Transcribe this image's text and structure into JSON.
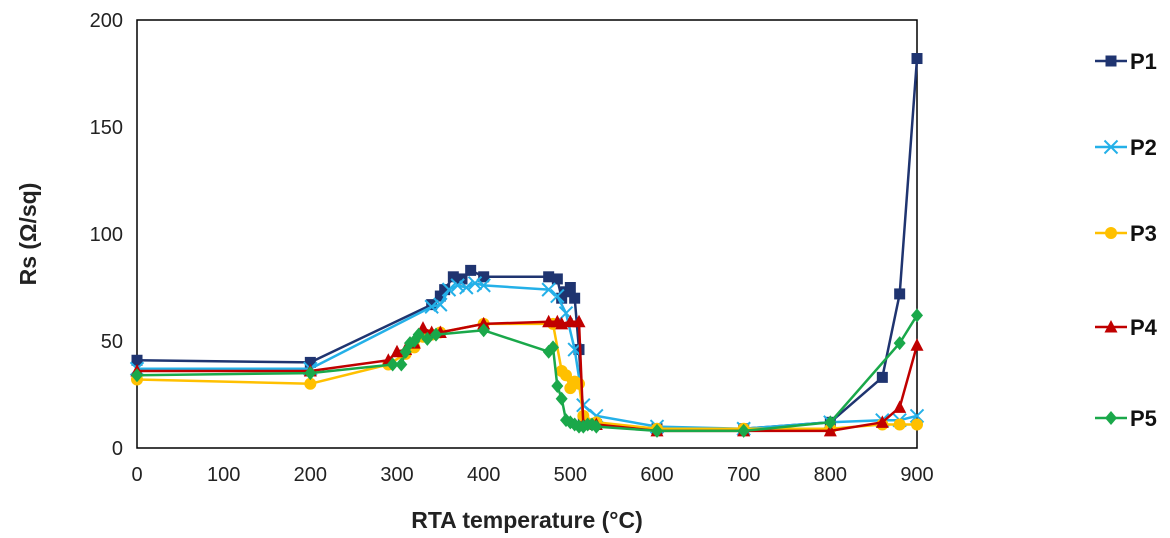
{
  "chart_data": {
    "type": "line",
    "title": "",
    "xlabel": "RTA temperature (°C)",
    "ylabel": "Rs (Ω/sq)",
    "xlim": [
      0,
      900
    ],
    "ylim": [
      0,
      200
    ],
    "xticks": [
      "0",
      "100",
      "200",
      "300",
      "400",
      "500",
      "600",
      "700",
      "800",
      "900"
    ],
    "yticks": [
      "0",
      "50",
      "100",
      "150",
      "200"
    ],
    "grid": false,
    "legend_position": "right",
    "series": [
      {
        "name": "P1",
        "color": "#1f3470",
        "marker": "square",
        "points": [
          [
            0,
            41
          ],
          [
            200,
            40
          ],
          [
            340,
            67
          ],
          [
            350,
            71
          ],
          [
            355,
            74
          ],
          [
            365,
            80
          ],
          [
            375,
            79
          ],
          [
            385,
            83
          ],
          [
            400,
            80
          ],
          [
            475,
            80
          ],
          [
            485,
            79
          ],
          [
            490,
            70
          ],
          [
            495,
            73
          ],
          [
            500,
            75
          ],
          [
            505,
            70
          ],
          [
            510,
            46
          ],
          [
            515,
            12
          ],
          [
            530,
            11
          ],
          [
            600,
            9
          ],
          [
            700,
            9
          ],
          [
            800,
            12
          ],
          [
            860,
            33
          ],
          [
            880,
            72
          ],
          [
            900,
            182
          ]
        ]
      },
      {
        "name": "P2",
        "color": "#24b0e8",
        "marker": "x",
        "points": [
          [
            0,
            37
          ],
          [
            200,
            37
          ],
          [
            340,
            66
          ],
          [
            350,
            67
          ],
          [
            360,
            74
          ],
          [
            370,
            76
          ],
          [
            380,
            75
          ],
          [
            390,
            77
          ],
          [
            400,
            76
          ],
          [
            475,
            74
          ],
          [
            485,
            71
          ],
          [
            495,
            63
          ],
          [
            505,
            46
          ],
          [
            515,
            20
          ],
          [
            530,
            15
          ],
          [
            600,
            10
          ],
          [
            700,
            9
          ],
          [
            800,
            12
          ],
          [
            860,
            13
          ],
          [
            880,
            13
          ],
          [
            900,
            15
          ]
        ]
      },
      {
        "name": "P3",
        "color": "#ffc000",
        "marker": "circle",
        "points": [
          [
            0,
            32
          ],
          [
            200,
            30
          ],
          [
            290,
            39
          ],
          [
            310,
            44
          ],
          [
            320,
            47
          ],
          [
            330,
            52
          ],
          [
            340,
            53
          ],
          [
            350,
            54
          ],
          [
            400,
            58
          ],
          [
            480,
            58
          ],
          [
            490,
            36
          ],
          [
            495,
            34
          ],
          [
            500,
            28
          ],
          [
            505,
            31
          ],
          [
            510,
            30
          ],
          [
            515,
            15
          ],
          [
            530,
            12
          ],
          [
            600,
            9
          ],
          [
            700,
            9
          ],
          [
            800,
            9
          ],
          [
            860,
            11
          ],
          [
            880,
            11
          ],
          [
            900,
            11
          ]
        ]
      },
      {
        "name": "P4",
        "color": "#c00000",
        "marker": "triangle",
        "points": [
          [
            0,
            36
          ],
          [
            200,
            36
          ],
          [
            290,
            41
          ],
          [
            300,
            45
          ],
          [
            310,
            46
          ],
          [
            320,
            49
          ],
          [
            330,
            56
          ],
          [
            340,
            54
          ],
          [
            350,
            54
          ],
          [
            400,
            58
          ],
          [
            475,
            59
          ],
          [
            485,
            59
          ],
          [
            490,
            58
          ],
          [
            500,
            59
          ],
          [
            510,
            59
          ],
          [
            515,
            11
          ],
          [
            530,
            11
          ],
          [
            600,
            8
          ],
          [
            700,
            8
          ],
          [
            800,
            8
          ],
          [
            860,
            12
          ],
          [
            880,
            19
          ],
          [
            900,
            48
          ]
        ]
      },
      {
        "name": "P5",
        "color": "#1aa84a",
        "marker": "diamond",
        "points": [
          [
            0,
            34
          ],
          [
            200,
            35
          ],
          [
            295,
            39
          ],
          [
            305,
            39
          ],
          [
            310,
            45
          ],
          [
            315,
            49
          ],
          [
            320,
            50
          ],
          [
            325,
            53
          ],
          [
            335,
            51
          ],
          [
            345,
            53
          ],
          [
            400,
            55
          ],
          [
            475,
            45
          ],
          [
            480,
            47
          ],
          [
            485,
            29
          ],
          [
            490,
            23
          ],
          [
            495,
            13
          ],
          [
            500,
            12
          ],
          [
            505,
            11
          ],
          [
            510,
            10
          ],
          [
            515,
            10
          ],
          [
            520,
            11
          ],
          [
            525,
            11
          ],
          [
            530,
            10
          ],
          [
            600,
            8
          ],
          [
            700,
            8
          ],
          [
            800,
            12
          ],
          [
            880,
            49
          ],
          [
            900,
            62
          ]
        ]
      }
    ]
  }
}
